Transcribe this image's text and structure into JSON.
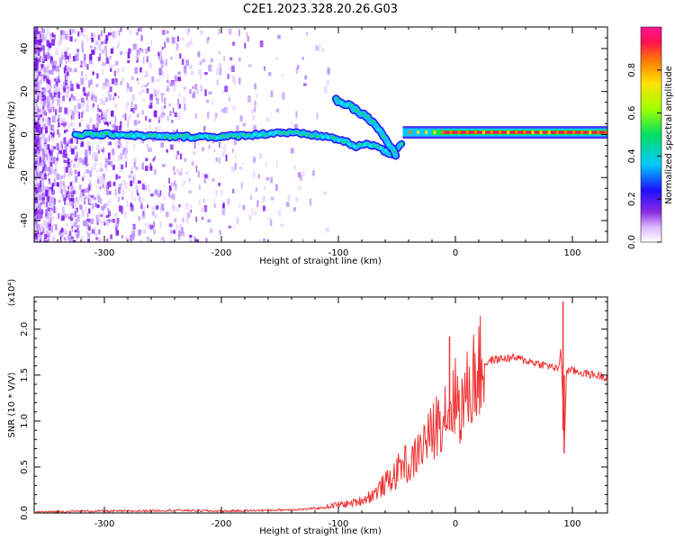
{
  "figure_title": "C2E1.2023.328.20.26.G03",
  "chart_data": [
    {
      "type": "heatmap",
      "title": "",
      "xlabel": "Height of straight line (km)",
      "ylabel": "Frequency (Hz)",
      "xlim": [
        -360,
        130
      ],
      "ylim": [
        -50,
        50
      ],
      "xticks": [
        -300,
        -200,
        -100,
        0,
        100
      ],
      "yticks": [
        -40,
        -20,
        0,
        20,
        40
      ],
      "colorbar": {
        "label": "Normalized spectral amplitude",
        "range": [
          0.0,
          1.0
        ],
        "ticks": [
          "0.0",
          "0.2",
          "0.4",
          "0.6",
          "0.8"
        ],
        "colors": [
          "#ffffff",
          "#d9b8ff",
          "#8a2be2",
          "#1e10ff",
          "#00c8ff",
          "#00e060",
          "#a0ff00",
          "#ffe000",
          "#ff7f00",
          "#ff1050",
          "#ff1493"
        ]
      },
      "main_trace": [
        {
          "x": -325,
          "f": 0
        },
        {
          "x": -290,
          "f": 0
        },
        {
          "x": -250,
          "f": -1
        },
        {
          "x": -200,
          "f": -1
        },
        {
          "x": -170,
          "f": 0
        },
        {
          "x": -150,
          "f": 1
        },
        {
          "x": -125,
          "f": 0
        },
        {
          "x": -110,
          "f": -1
        },
        {
          "x": -95,
          "f": -3
        },
        {
          "x": -85,
          "f": -6
        },
        {
          "x": -75,
          "f": -4
        },
        {
          "x": -65,
          "f": -6
        },
        {
          "x": -55,
          "f": -10
        },
        {
          "x": -45,
          "f": -3
        },
        {
          "x": -30,
          "f": 0
        },
        {
          "x": -10,
          "f": 1
        },
        {
          "x": 0,
          "f": 1
        },
        {
          "x": 40,
          "f": 1
        },
        {
          "x": 90,
          "f": 1
        },
        {
          "x": 130,
          "f": 1
        }
      ],
      "secondary_trace": [
        {
          "x": -102,
          "f": 16
        },
        {
          "x": -90,
          "f": 13
        },
        {
          "x": -75,
          "f": 8
        },
        {
          "x": -65,
          "f": 2
        },
        {
          "x": -58,
          "f": -4
        },
        {
          "x": -50,
          "f": -10
        }
      ]
    },
    {
      "type": "line",
      "title": "",
      "xlabel": "Height of straight line (km)",
      "ylabel": "SNR (10 * V/V)",
      "scale_label": "(x10⁴)",
      "xlim": [
        -360,
        130
      ],
      "ylim": [
        0,
        2.35
      ],
      "xticks": [
        -300,
        -200,
        -100,
        0,
        100
      ],
      "yticks": [
        "0.0",
        "0.5",
        "1.0",
        "1.5",
        "2.0"
      ],
      "series": [
        {
          "color": "#ee3333",
          "x": [
            -360,
            -320,
            -280,
            -240,
            -200,
            -160,
            -130,
            -110,
            -100,
            -90,
            -80,
            -70,
            -60,
            -50,
            -45,
            -40,
            -35,
            -30,
            -25,
            -20,
            -15,
            -10,
            -5,
            0,
            5,
            10,
            15,
            20,
            25,
            30,
            40,
            50,
            60,
            70,
            80,
            85,
            88,
            90,
            92,
            93,
            95,
            100,
            110,
            120,
            130
          ],
          "y": [
            0.01,
            0.02,
            0.02,
            0.03,
            0.02,
            0.03,
            0.04,
            0.06,
            0.08,
            0.09,
            0.12,
            0.18,
            0.28,
            0.38,
            0.5,
            0.45,
            0.6,
            0.7,
            0.8,
            0.85,
            1.0,
            1.1,
            1.2,
            1.25,
            1.15,
            1.3,
            1.45,
            1.55,
            1.62,
            1.66,
            1.68,
            1.69,
            1.66,
            1.63,
            1.6,
            1.58,
            1.55,
            1.8,
            1.2,
            0.7,
            1.55,
            1.55,
            1.52,
            1.5,
            1.48
          ]
        }
      ],
      "annotations": [
        {
          "x": -5,
          "y": 1.92,
          "text": ""
        },
        {
          "x": 92,
          "y": 2.3,
          "text": ""
        }
      ]
    }
  ]
}
